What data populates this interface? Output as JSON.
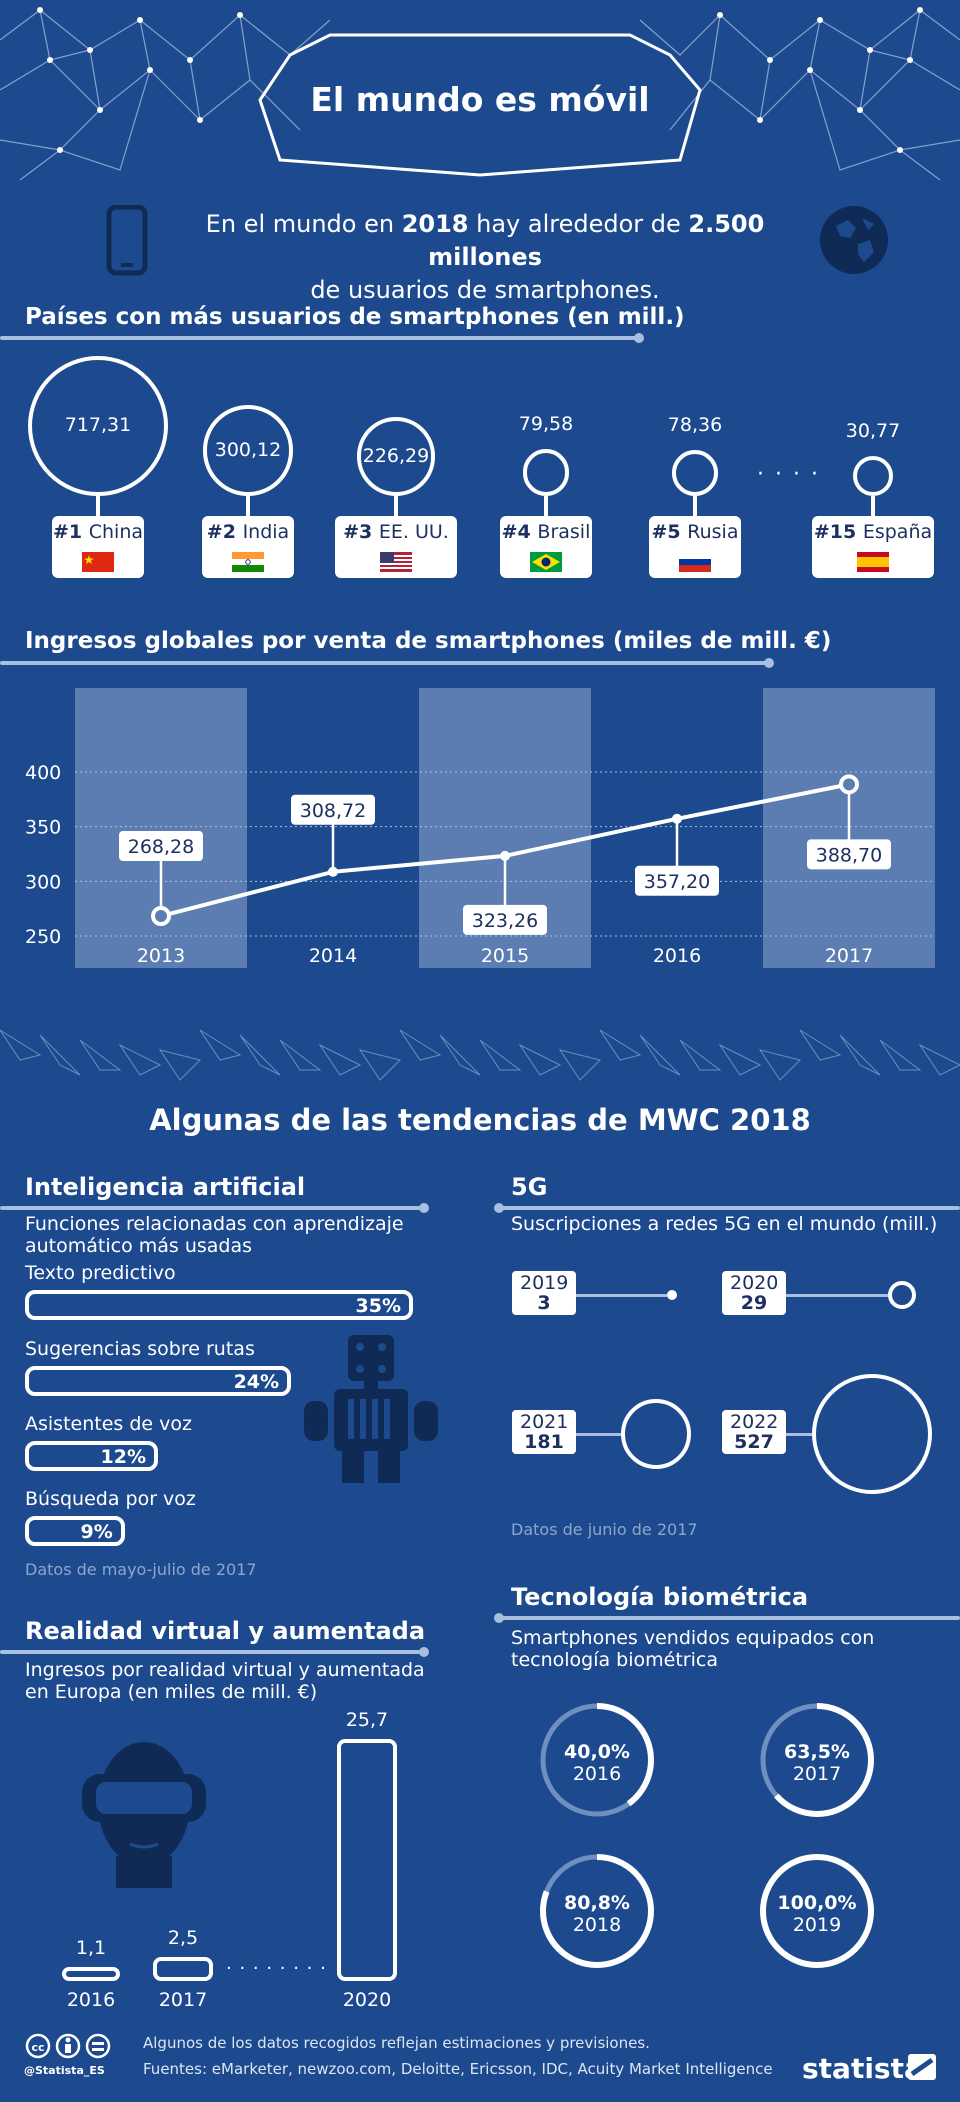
{
  "title": "El mundo es móvil",
  "headline": {
    "pre": "En el mundo en ",
    "year": "2018",
    "mid": " hay alrededor de  ",
    "amount": "2.500 millones",
    "post": "de usuarios de smartphones."
  },
  "countries": {
    "title": "Países con más usuarios de smartphones (en mill.)",
    "items": [
      {
        "rank": "#1",
        "name": "China",
        "value": 717.31,
        "label": "717,31"
      },
      {
        "rank": "#2",
        "name": "India",
        "value": 300.12,
        "label": "300,12"
      },
      {
        "rank": "#3",
        "name": "EE. UU.",
        "value": 226.29,
        "label": "226,29"
      },
      {
        "rank": "#4",
        "name": "Brasil",
        "value": 79.58,
        "label": "79,58"
      },
      {
        "rank": "#5",
        "name": "Rusia",
        "value": 78.36,
        "label": "78,36"
      },
      {
        "rank": "#15",
        "name": "España",
        "value": 30.77,
        "label": "30,77"
      }
    ],
    "ellipsis": "· · · ·"
  },
  "revenue": {
    "title": "Ingresos globales por venta de smartphones (miles de mill. €)"
  },
  "chart_data": [
    {
      "type": "line",
      "title": "Ingresos globales por venta de smartphones (miles de mill. €)",
      "categories": [
        "2013",
        "2014",
        "2015",
        "2016",
        "2017"
      ],
      "values": [
        268.28,
        308.72,
        323.26,
        357.2,
        388.7
      ],
      "labels": [
        "268,28",
        "308,72",
        "323,26",
        "357,20",
        "388,70"
      ],
      "yticks": [
        "400",
        "350",
        "300",
        "250"
      ],
      "ylim": [
        250,
        400
      ],
      "grid": true
    },
    {
      "type": "bar",
      "title": "Inteligencia artificial",
      "subtitle": "Funciones relacionadas con aprendizaje automático más usadas",
      "categories": [
        "Texto predictivo",
        "Sugerencias sobre rutas",
        "Asistentes de voz",
        "Búsqueda por voz"
      ],
      "values": [
        35,
        24,
        12,
        9
      ],
      "labels": [
        "35%",
        "24%",
        "12%",
        "9%"
      ],
      "note": "Datos de mayo-julio de 2017"
    },
    {
      "type": "scatter",
      "title": "5G",
      "subtitle": "Suscripciones a redes 5G en el mundo (mill.)",
      "categories": [
        "2019",
        "2020",
        "2021",
        "2022"
      ],
      "values": [
        3,
        29,
        181,
        527
      ],
      "note": "Datos de junio de 2017"
    },
    {
      "type": "bar",
      "title": "Realidad virtual y aumentada",
      "subtitle": "Ingresos por realidad virtual y aumentada en Europa (en miles de mill. €)",
      "categories": [
        "2016",
        "2017",
        "2020"
      ],
      "values": [
        1.1,
        2.5,
        25.7
      ],
      "labels": [
        "1,1",
        "2,5",
        "25,7"
      ],
      "ellipsis": "· · · · · · · ·"
    },
    {
      "type": "pie",
      "title": "Tecnología biométrica",
      "subtitle": "Smartphones vendidos equipados con tecnología biométrica",
      "categories": [
        "2016",
        "2017",
        "2018",
        "2019"
      ],
      "values": [
        40.0,
        63.5,
        80.8,
        100.0
      ],
      "labels": [
        "40,0%",
        "63,5%",
        "80,8%",
        "100,0%"
      ]
    }
  ],
  "mwc_title": "Algunas de las tendencias de MWC 2018",
  "footer": {
    "handle": "@Statista_ES",
    "note": "Algunos de los datos recogidos reflejan estimaciones y previsiones.",
    "sources": "Fuentes: eMarketer, newzoo.com, Deloitte, Ericsson, IDC, Acuity Market Intelligence",
    "brand": "statista"
  },
  "colors": {
    "background": "#1d4a8e",
    "accent": "#a8bfdf",
    "band": "#5c7db1"
  }
}
